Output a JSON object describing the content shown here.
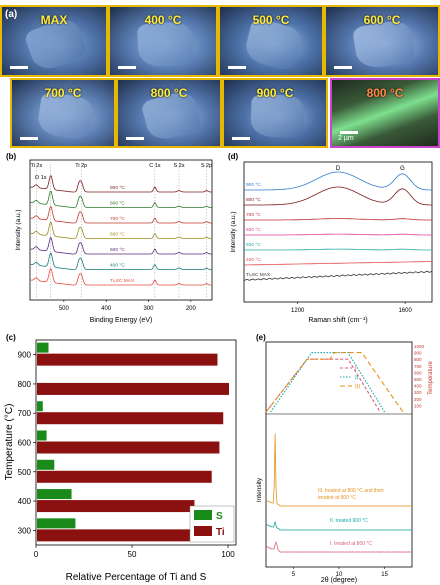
{
  "panel_a": {
    "panel_label": "(a)",
    "tiles": [
      {
        "label": "MAX",
        "bg": "#4f73a8",
        "accent": "#8fb0db"
      },
      {
        "label": "400 °C",
        "bg": "#5a7fb5",
        "accent": "#9cbbe3"
      },
      {
        "label": "500 °C",
        "bg": "#4e74ab",
        "accent": "#a6c3e8"
      },
      {
        "label": "600 °C",
        "bg": "#5679b0",
        "accent": "#b1cbef"
      },
      {
        "label": "700 °C",
        "bg": "#5d7fb3",
        "accent": "#a9c5ea"
      },
      {
        "label": "800 °C",
        "bg": "#5477ad",
        "accent": "#9ebde3"
      },
      {
        "label": "900 °C",
        "bg": "#4c70a6",
        "accent": "#a4c0e6"
      },
      {
        "label": "800 °C",
        "bg": "#2c3b2a",
        "accent": "#7ddf8e",
        "scale": "2 µm"
      }
    ]
  },
  "panel_b": {
    "panel_label": "(b)",
    "xlabel": "Binding Energy (eV)",
    "ylabel": "Intensity (a.u.)",
    "xticks": [
      "500",
      "400",
      "300",
      "200"
    ],
    "peak_labels": [
      "Ti 2s",
      "O 1s",
      "Ti 2p",
      "C 1s",
      "S 2s",
      "S 2p"
    ],
    "series": [
      {
        "name": "900 °C",
        "color": "#7a1f1f"
      },
      {
        "name": "800 °C",
        "color": "#2b7a2b"
      },
      {
        "name": "700 °C",
        "color": "#c0392b"
      },
      {
        "name": "600 °C",
        "color": "#9a8a1a"
      },
      {
        "name": "500 °C",
        "color": "#5b2a7a"
      },
      {
        "name": "400 °C",
        "color": "#1a7a7a"
      },
      {
        "name": "Ti₃SC MAX",
        "color": "#e74c3c"
      }
    ]
  },
  "panel_c": {
    "panel_label": "(c)",
    "chart_data": {
      "type": "bar",
      "categories": [
        "300",
        "400",
        "500",
        "600",
        "700",
        "800",
        "900"
      ],
      "series": [
        {
          "name": "S",
          "color": "#1a8a1a",
          "values": [
            20,
            18,
            9,
            5,
            3,
            0,
            6
          ]
        },
        {
          "name": "Ti",
          "color": "#8b1010",
          "values": [
            80,
            82,
            91,
            95,
            97,
            100,
            94
          ]
        }
      ],
      "xlabel": "Relative Percentage of Ti and S",
      "ylabel": "Temperature (°C)",
      "xlim": [
        0,
        100
      ],
      "xticks": [
        "0",
        "50",
        "100"
      ],
      "legend": "bottom-right"
    }
  },
  "panel_d": {
    "panel_label": "(d)",
    "xlabel": "Raman shift (cm⁻¹)",
    "ylabel": "Intensity (a.u.)",
    "xticks": [
      "1200",
      "1600"
    ],
    "peak_labels": [
      "D",
      "G"
    ],
    "series": [
      {
        "name": "900 °C",
        "color": "#2f7fd0"
      },
      {
        "name": "800 °C",
        "color": "#7a1a1a"
      },
      {
        "name": "700 °C",
        "color": "#c03030"
      },
      {
        "name": "600 °C",
        "color": "#e0409a"
      },
      {
        "name": "500 °C",
        "color": "#2aa8a8"
      },
      {
        "name": "400 °C",
        "color": "#e05050"
      },
      {
        "name": "Ti₃SC MAX",
        "color": "#333333"
      }
    ]
  },
  "panel_e": {
    "panel_label": "(e)",
    "xlabel": "2θ (degree)",
    "ylabel": "Intensity",
    "xticks": [
      "5",
      "10",
      "15"
    ],
    "temp_label": "Temperature",
    "temp_ticks": [
      "1000",
      "900",
      "800",
      "700",
      "600",
      "500",
      "400",
      "300",
      "200",
      "100"
    ],
    "legend": [
      "I",
      "II",
      "III"
    ],
    "series": [
      {
        "name": "III. treated at 800 °C and then treated at 900 °C",
        "color": "#e6921a"
      },
      {
        "name": "II. treated 900 °C",
        "color": "#1aa8a8"
      },
      {
        "name": "I. treated at 800 °C",
        "color": "#d9607a"
      }
    ]
  }
}
